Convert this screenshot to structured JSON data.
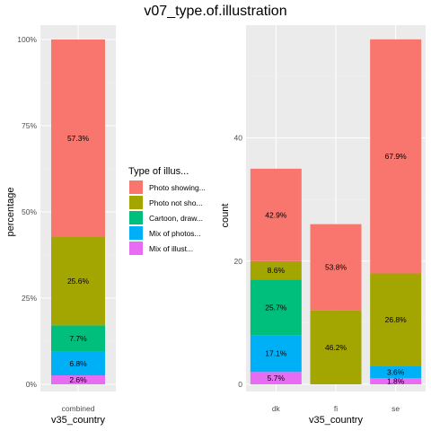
{
  "chart_data": [
    {
      "type": "bar",
      "stacked": true,
      "title": "v07_type.of.illustration",
      "xlabel": "v35_country",
      "ylabel": "percentage",
      "categories": [
        "combined"
      ],
      "ylim": [
        0,
        100
      ],
      "yticks": [
        "0%",
        "25%",
        "50%",
        "75%",
        "100%"
      ],
      "series": [
        {
          "name": "Mix of illust...",
          "values": [
            2.6
          ],
          "labels": [
            "2.6%"
          ]
        },
        {
          "name": "Mix of photos...",
          "values": [
            6.8
          ],
          "labels": [
            "6.8%"
          ]
        },
        {
          "name": "Cartoon, draw...",
          "values": [
            7.7
          ],
          "labels": [
            "7.7%"
          ]
        },
        {
          "name": "Photo not sho...",
          "values": [
            25.6
          ],
          "labels": [
            "25.6%"
          ]
        },
        {
          "name": "Photo showing...",
          "values": [
            57.3
          ],
          "labels": [
            "57.3%"
          ]
        }
      ]
    },
    {
      "type": "bar",
      "stacked": true,
      "xlabel": "v35_country",
      "ylabel": "count",
      "categories": [
        "dk",
        "fi",
        "se"
      ],
      "ylim": [
        0,
        56
      ],
      "yticks": [
        "0",
        "20",
        "40"
      ],
      "series": [
        {
          "name": "Mix of illust...",
          "values": [
            2,
            0,
            1
          ],
          "labels": [
            "5.7%",
            "",
            "1.8%"
          ]
        },
        {
          "name": "Mix of photos...",
          "values": [
            6,
            0,
            2
          ],
          "labels": [
            "17.1%",
            "",
            "3.6%"
          ]
        },
        {
          "name": "Cartoon, draw...",
          "values": [
            9,
            0,
            0
          ],
          "labels": [
            "25.7%",
            "",
            ""
          ]
        },
        {
          "name": "Photo not sho...",
          "values": [
            3,
            12,
            15
          ],
          "labels": [
            "8.6%",
            "46.2%",
            "26.8%"
          ]
        },
        {
          "name": "Photo showing...",
          "values": [
            15,
            14,
            38
          ],
          "labels": [
            "42.9%",
            "53.8%",
            "67.9%"
          ]
        }
      ]
    }
  ],
  "legend": {
    "title": "Type of illus...",
    "items": [
      {
        "label": "Photo showing...",
        "color": "#f8766d"
      },
      {
        "label": "Photo not sho...",
        "color": "#a3a500"
      },
      {
        "label": "Cartoon, draw...",
        "color": "#00bf7d"
      },
      {
        "label": "Mix of photos...",
        "color": "#00b0f6"
      },
      {
        "label": "Mix of illust...",
        "color": "#e76bf3"
      }
    ]
  },
  "colors": {
    "panel_background": "#ebebeb",
    "grid_major": "#ffffff",
    "grid_minor": "#f2f2f2"
  }
}
